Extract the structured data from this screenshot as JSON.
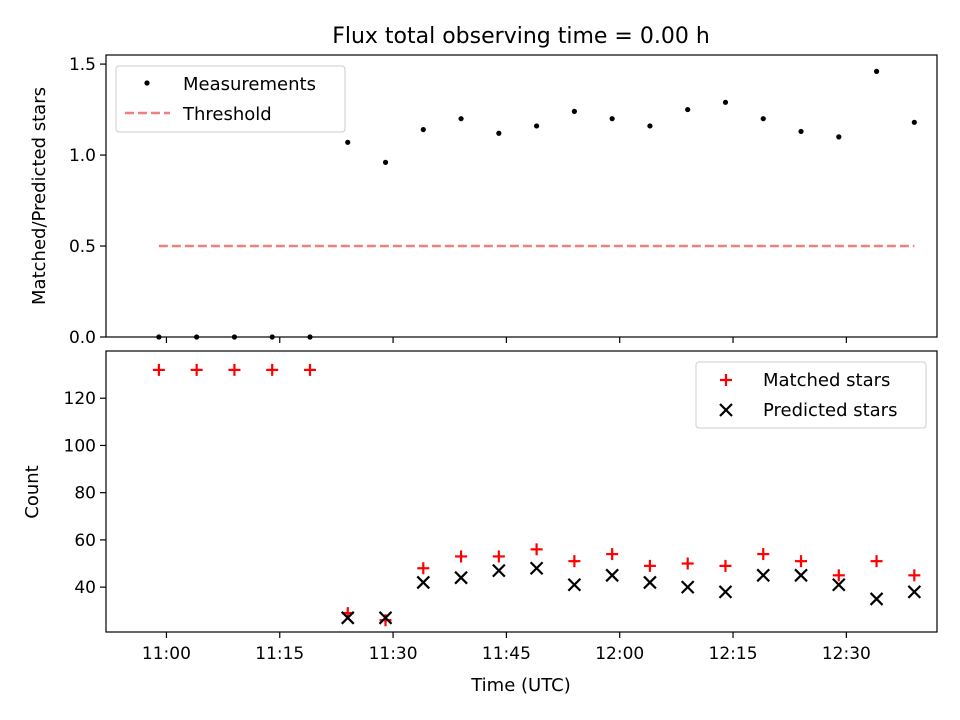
{
  "title": "Flux total observing time = 0.00 h",
  "chart_data": [
    {
      "type": "scatter",
      "ylabel": "Matched/Predicted stars",
      "ylim": [
        0,
        1.55
      ],
      "xlim": [
        "10:52",
        "12:42"
      ],
      "yticks": [
        0.0,
        0.5,
        1.0,
        1.5
      ],
      "ytick_labels": [
        "0.0",
        "0.5",
        "1.0",
        "1.5"
      ],
      "legend_position": "top-left",
      "series": [
        {
          "name": "Measurements",
          "color": "#000000",
          "marker": "dot",
          "x": [
            "10:59",
            "11:04",
            "11:09",
            "11:14",
            "11:19",
            "11:24",
            "11:29",
            "11:34",
            "11:39",
            "11:44",
            "11:49",
            "11:54",
            "11:59",
            "12:04",
            "12:09",
            "12:14",
            "12:19",
            "12:24",
            "12:29",
            "12:34",
            "12:39"
          ],
          "y": [
            0.0,
            0.0,
            0.0,
            0.0,
            0.0,
            1.07,
            0.96,
            1.14,
            1.2,
            1.12,
            1.16,
            1.24,
            1.2,
            1.16,
            1.25,
            1.29,
            1.2,
            1.13,
            1.1,
            1.46,
            1.18
          ]
        },
        {
          "name": "Threshold",
          "color": "#f08080",
          "style": "dashed",
          "x": [
            "10:59",
            "12:39"
          ],
          "y": [
            0.5,
            0.5
          ]
        }
      ]
    },
    {
      "type": "scatter",
      "xlabel": "Time (UTC)",
      "ylabel": "Count",
      "ylim": [
        21,
        140
      ],
      "xlim": [
        "10:52",
        "12:42"
      ],
      "yticks": [
        40,
        60,
        80,
        100,
        120
      ],
      "ytick_labels": [
        "40",
        "60",
        "80",
        "100",
        "120"
      ],
      "xticks": [
        "11:00",
        "11:15",
        "11:30",
        "11:45",
        "12:00",
        "12:15",
        "12:30"
      ],
      "xtick_labels": [
        "11:00",
        "11:15",
        "11:30",
        "11:45",
        "12:00",
        "12:15",
        "12:30"
      ],
      "legend_position": "top-right",
      "series": [
        {
          "name": "Matched stars",
          "color": "#ff0000",
          "marker": "plus",
          "x": [
            "10:59",
            "11:04",
            "11:09",
            "11:14",
            "11:19",
            "11:24",
            "11:29",
            "11:34",
            "11:39",
            "11:44",
            "11:49",
            "11:54",
            "11:59",
            "12:04",
            "12:09",
            "12:14",
            "12:19",
            "12:24",
            "12:29",
            "12:34",
            "12:39"
          ],
          "y": [
            132,
            132,
            132,
            132,
            132,
            29,
            26,
            48,
            53,
            53,
            56,
            51,
            54,
            49,
            50,
            49,
            54,
            51,
            45,
            51,
            45
          ]
        },
        {
          "name": "Predicted stars",
          "color": "#000000",
          "marker": "x",
          "x": [
            "11:24",
            "11:29",
            "11:34",
            "11:39",
            "11:44",
            "11:49",
            "11:54",
            "11:59",
            "12:04",
            "12:09",
            "12:14",
            "12:19",
            "12:24",
            "12:29",
            "12:34",
            "12:39"
          ],
          "y": [
            27,
            27,
            42,
            44,
            47,
            48,
            41,
            45,
            42,
            40,
            38,
            45,
            45,
            41,
            35,
            38
          ]
        }
      ]
    }
  ]
}
